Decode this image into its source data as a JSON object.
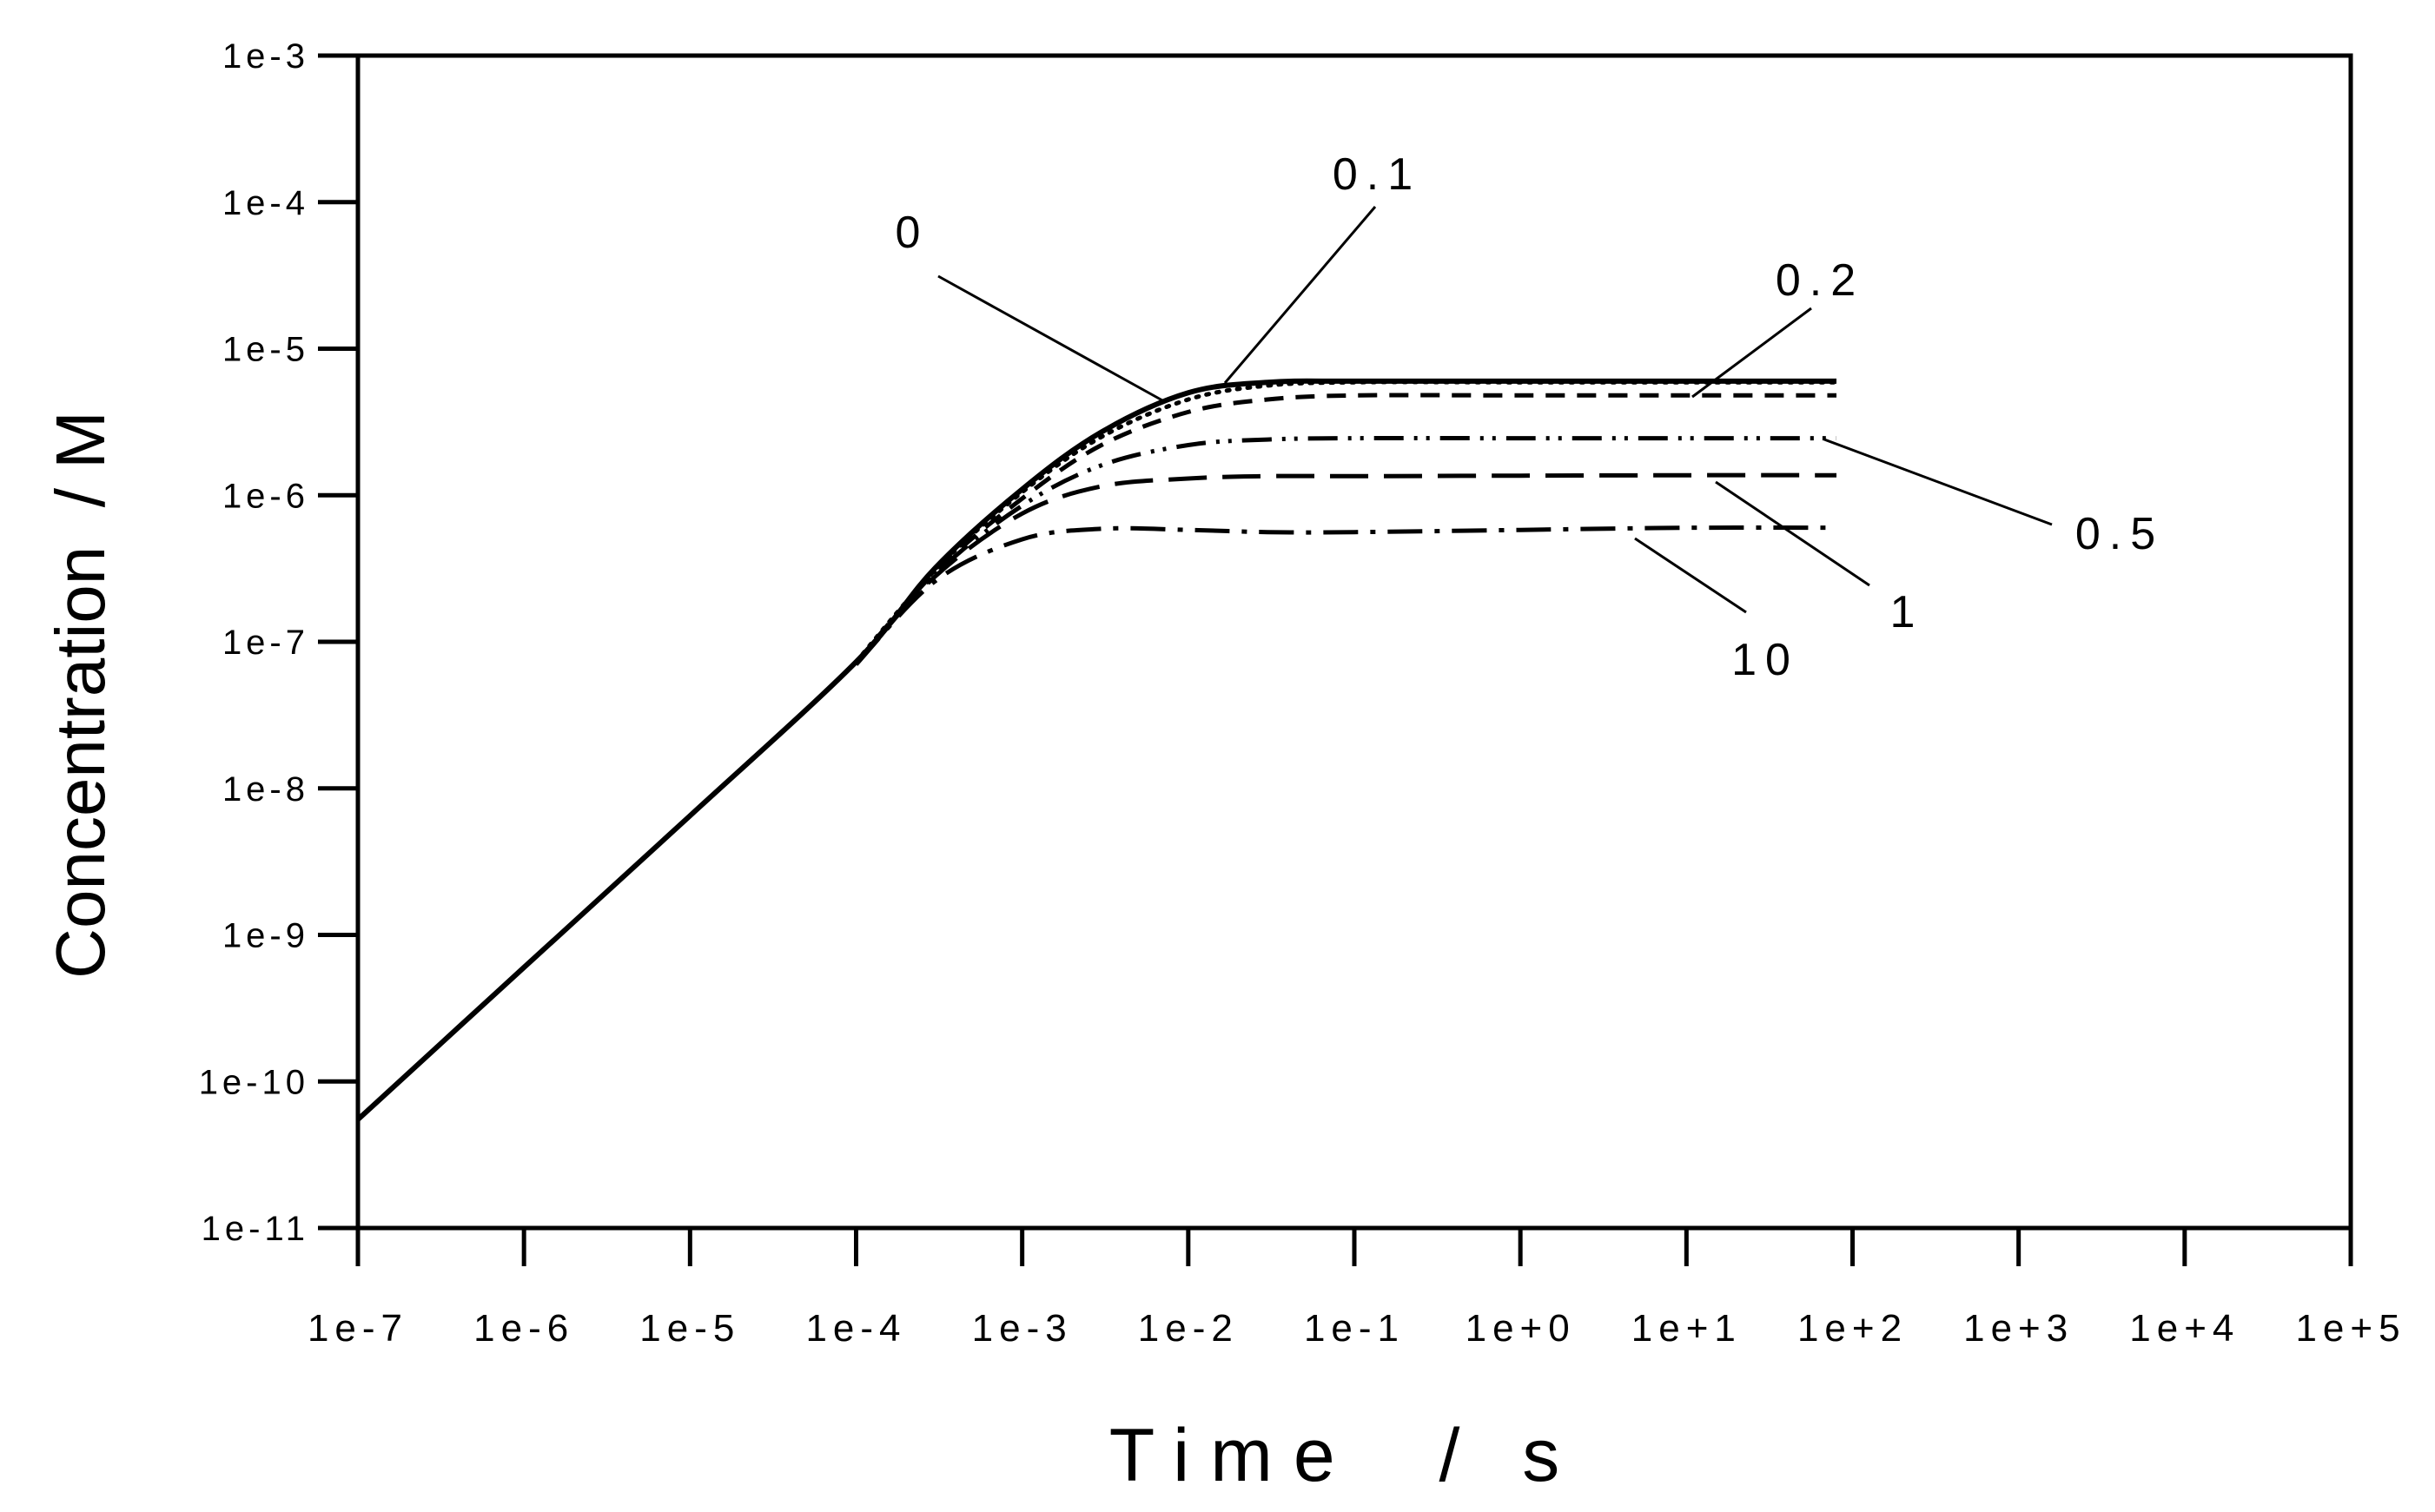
{
  "chart_data": {
    "type": "line",
    "xlabel": "Time  / s",
    "ylabel": "Concentration  / M",
    "xscale": "log",
    "yscale": "log",
    "xlim": [
      1e-07,
      100000.0
    ],
    "ylim": [
      1e-11,
      0.001
    ],
    "x_ticks": [
      "1e-7",
      "1e-6",
      "1e-5",
      "1e-4",
      "1e-3",
      "1e-2",
      "1e-1",
      "1e+0",
      "1e+1",
      "1e+2",
      "1e+3",
      "1e+4",
      "1e+5"
    ],
    "y_ticks": [
      "1e-11",
      "1e-10",
      "1e-9",
      "1e-8",
      "1e-7",
      "1e-6",
      "1e-5",
      "1e-4",
      "1e-3"
    ],
    "grid": false,
    "legend": "none (curves labelled directly)",
    "series": [
      {
        "name": "0",
        "style": "solid",
        "x": [
          1e-07,
          1e-06,
          1e-05,
          0.0001,
          0.0003,
          0.001,
          0.003,
          0.01,
          0.03,
          0.1,
          1,
          10,
          80
        ],
        "y": [
          5.5e-11,
          6e-10,
          6.5e-09,
          7.3e-08,
          3.2e-07,
          1.1e-06,
          2.7e-06,
          5e-06,
          5.9e-06,
          6e-06,
          6e-06,
          6e-06,
          6e-06
        ]
      },
      {
        "name": "0.1",
        "style": "dotted",
        "x": [
          0.0001,
          0.0003,
          0.001,
          0.003,
          0.01,
          0.03,
          0.1,
          1,
          10,
          80
        ],
        "y": [
          7.3e-08,
          3.1e-07,
          1.05e-06,
          2.5e-06,
          4.5e-06,
          5.6e-06,
          5.9e-06,
          5.9e-06,
          5.9e-06,
          5.9e-06
        ]
      },
      {
        "name": "0.2",
        "style": "dashed",
        "x": [
          0.0001,
          0.0003,
          0.001,
          0.003,
          0.01,
          0.03,
          0.1,
          1,
          10,
          80
        ],
        "y": [
          7.2e-08,
          3e-07,
          9.5e-07,
          2.2e-06,
          3.7e-06,
          4.5e-06,
          4.8e-06,
          4.8e-06,
          4.8e-06,
          4.8e-06
        ]
      },
      {
        "name": "0.5",
        "style": "dash-dot-dot",
        "x": [
          0.0001,
          0.0003,
          0.001,
          0.003,
          0.01,
          0.03,
          0.1,
          1,
          10,
          80
        ],
        "y": [
          7.2e-08,
          2.9e-07,
          8.5e-07,
          1.6e-06,
          2.2e-06,
          2.4e-06,
          2.45e-06,
          2.45e-06,
          2.45e-06,
          2.45e-06
        ]
      },
      {
        "name": "1",
        "style": "long-dash",
        "x": [
          0.0001,
          0.0003,
          0.001,
          0.003,
          0.01,
          0.03,
          0.1,
          1,
          10,
          80
        ],
        "y": [
          7.1e-08,
          2.8e-07,
          7.5e-07,
          1.15e-06,
          1.3e-06,
          1.35e-06,
          1.35e-06,
          1.36e-06,
          1.37e-06,
          1.37e-06
        ]
      },
      {
        "name": "10",
        "style": "dash-dot",
        "x": [
          0.0001,
          0.0003,
          0.001,
          0.003,
          0.01,
          0.03,
          0.1,
          1,
          10,
          80
        ],
        "y": [
          7e-08,
          2.6e-07,
          5e-07,
          5.9e-07,
          5.8e-07,
          5.6e-07,
          5.6e-07,
          5.8e-07,
          6e-07,
          6e-07
        ]
      }
    ]
  }
}
